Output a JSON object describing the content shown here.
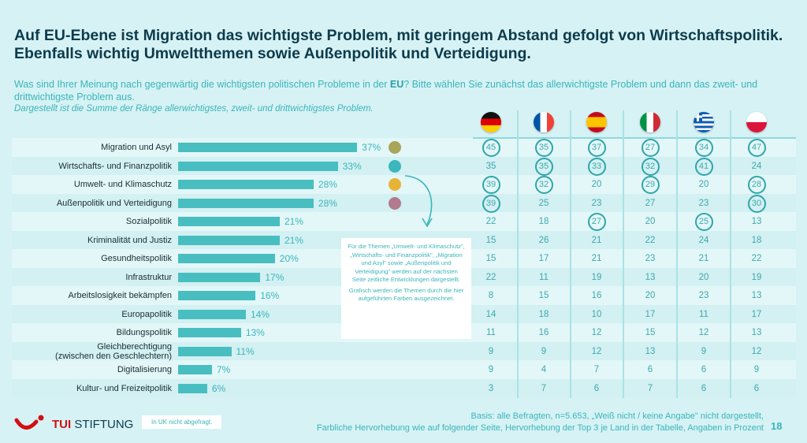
{
  "header": {
    "title": "Auf EU-Ebene ist Migration das wichtigste Problem, mit geringem Abstand gefolgt von Wirtschaftspolitik. Ebenfalls wichtig Umweltthemen sowie Außenpolitik und Verteidigung.",
    "question_pre": "Was sind Ihrer Meinung nach gegenwärtig die wichtigsten politischen Probleme in der ",
    "question_bold": "EU",
    "question_post": "? Bitte wählen Sie zunächst das allerwichtigste Problem und dann das zweit- und drittwichtigste Problem aus.",
    "subtitle": "Dargestellt ist die Summe der Ränge allerwichtigstes, zweit- und drittwichtigstes Problem."
  },
  "chart_data": {
    "type": "bar",
    "orientation": "horizontal",
    "unit": "%",
    "categories": [
      "Migration und Asyl",
      "Wirtschafts- und Finanzpolitik",
      "Umwelt- und Klimaschutz",
      "Außenpolitik und Verteidigung",
      "Sozialpolitik",
      "Kriminalität und Justiz",
      "Gesundheitspolitik",
      "Infrastruktur",
      "Arbeitslosigkeit bekämpfen",
      "Europapolitik",
      "Bildungspolitik",
      "Gleichberechtigung (zwischen den Geschlechtern)",
      "Digitalisierung",
      "Kultur- und Freizeitpolitik"
    ],
    "values": [
      37,
      33,
      28,
      28,
      21,
      21,
      20,
      17,
      16,
      14,
      13,
      11,
      7,
      6
    ],
    "labels": [
      "37%",
      "33%",
      "28%",
      "28%",
      "21%",
      "21%",
      "20%",
      "17%",
      "16%",
      "14%",
      "13%",
      "11%",
      "7%",
      "6%"
    ],
    "bar_color": "#48bec0",
    "highlight_dots": [
      {
        "category": "Migration und Asyl",
        "color": "#a9a55c"
      },
      {
        "category": "Wirtschafts- und Finanzpolitik",
        "color": "#3bb8bd"
      },
      {
        "category": "Umwelt- und Klimaschutz",
        "color": "#e8b437"
      },
      {
        "category": "Außenpolitik und Verteidigung",
        "color": "#b17b8d"
      }
    ]
  },
  "table": {
    "countries": [
      "germany",
      "france",
      "spain",
      "italy",
      "greece",
      "poland"
    ],
    "rows": [
      [
        45,
        35,
        37,
        27,
        34,
        47
      ],
      [
        35,
        35,
        33,
        32,
        41,
        24
      ],
      [
        39,
        32,
        20,
        29,
        20,
        28
      ],
      [
        39,
        25,
        23,
        27,
        23,
        30
      ],
      [
        22,
        18,
        27,
        20,
        25,
        13
      ],
      [
        15,
        26,
        21,
        22,
        24,
        18
      ],
      [
        15,
        17,
        21,
        23,
        21,
        22
      ],
      [
        22,
        11,
        19,
        13,
        20,
        19
      ],
      [
        8,
        15,
        16,
        20,
        23,
        13
      ],
      [
        14,
        18,
        10,
        17,
        11,
        17
      ],
      [
        11,
        16,
        12,
        15,
        12,
        13
      ],
      [
        9,
        9,
        12,
        13,
        9,
        12
      ],
      [
        9,
        4,
        7,
        6,
        6,
        9
      ],
      [
        3,
        7,
        6,
        7,
        6,
        6
      ]
    ],
    "top3": [
      [
        1,
        1,
        1,
        1,
        1,
        1
      ],
      [
        0,
        1,
        1,
        1,
        1,
        0
      ],
      [
        1,
        1,
        0,
        1,
        0,
        1
      ],
      [
        1,
        0,
        0,
        0,
        0,
        1
      ],
      [
        0,
        0,
        1,
        0,
        1,
        0
      ]
    ]
  },
  "note": {
    "p1": "Für die Themen „Umwelt- und Klimaschutz\", „Wirtschafts- und Finanzpolitik\", „Migration und Asyl\" sowie „Außenpolitik und Verteidigung\" werden auf der nächsten Seite zeitliche Entwicklungen dargestellt.",
    "p2": "Grafisch werden die Themen durch die hier aufgeführten Farben ausgezeichnet."
  },
  "footer": {
    "logo": "TUI STIFTUNG",
    "logo_bold": "TUI",
    "logo_rest": "STIFTUNG",
    "uk_note": "In UK nicht abgefragt.",
    "basis": "Basis: alle Befragten, n=5.653, „Weiß nicht / keine Angabe\" nicht dargestellt,",
    "note2": "Farbliche Hervorhebung wie auf folgender Seite, Hervorhebung der Top 3 je Land in der Tabelle, Angaben in Prozent",
    "page": "18"
  }
}
